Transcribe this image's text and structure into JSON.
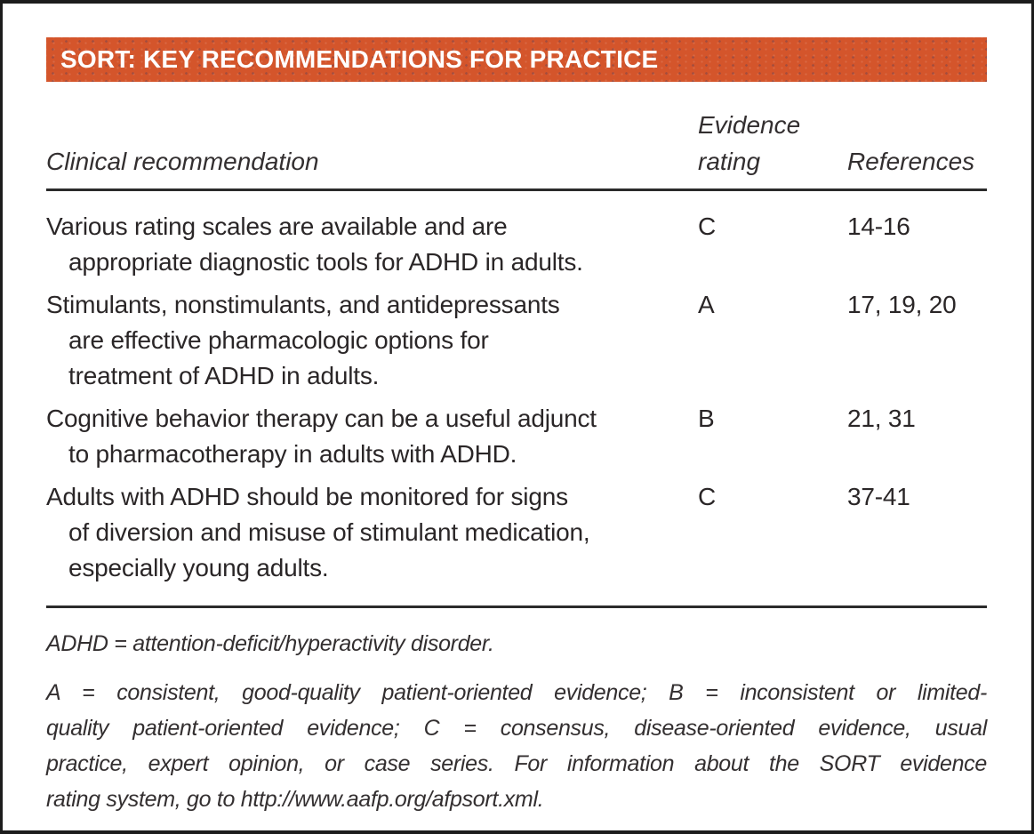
{
  "panel": {
    "title": "SORT: KEY RECOMMENDATIONS FOR PRACTICE"
  },
  "table": {
    "headers": {
      "recommendation": "Clinical recommendation",
      "evidence_line1": "Evidence",
      "evidence_line2": "rating",
      "references": "References"
    },
    "rows": [
      {
        "recommendation_lines": [
          "Various rating scales are available and are",
          "appropriate diagnostic tools for ADHD in adults."
        ],
        "evidence_rating": "C",
        "references": "14-16"
      },
      {
        "recommendation_lines": [
          "Stimulants, nonstimulants, and antidepressants",
          "are effective pharmacologic options for",
          "treatment of ADHD in adults."
        ],
        "evidence_rating": "A",
        "references": "17, 19, 20"
      },
      {
        "recommendation_lines": [
          "Cognitive behavior therapy can be a useful adjunct",
          "to pharmacotherapy in adults with ADHD.",
          ""
        ],
        "evidence_rating": "B",
        "references": "21, 31"
      },
      {
        "recommendation_lines": [
          "Adults with ADHD should be monitored for signs",
          "of diversion and misuse of stimulant medication,",
          "especially young adults."
        ],
        "evidence_rating": "C",
        "references": "37-41"
      }
    ]
  },
  "footnotes": {
    "abbreviation": "ADHD = attention-deficit/hyperactivity disorder.",
    "sort_key_lines": [
      "A = consistent, good-quality patient-oriented evidence; B = inconsistent or limited-",
      "quality patient-oriented evidence; C = consensus, disease-oriented evidence, usual",
      "practice, expert opinion, or case series. For information about the SORT evidence",
      "rating system, go to http://www.aafp.org/afpsort.xml."
    ]
  },
  "colors": {
    "header_bar_bg": "#d4552b",
    "header_bar_text": "#ffffff",
    "body_text": "#2a2627",
    "rule": "#2b2b2b",
    "border": "#1c1c1c"
  }
}
